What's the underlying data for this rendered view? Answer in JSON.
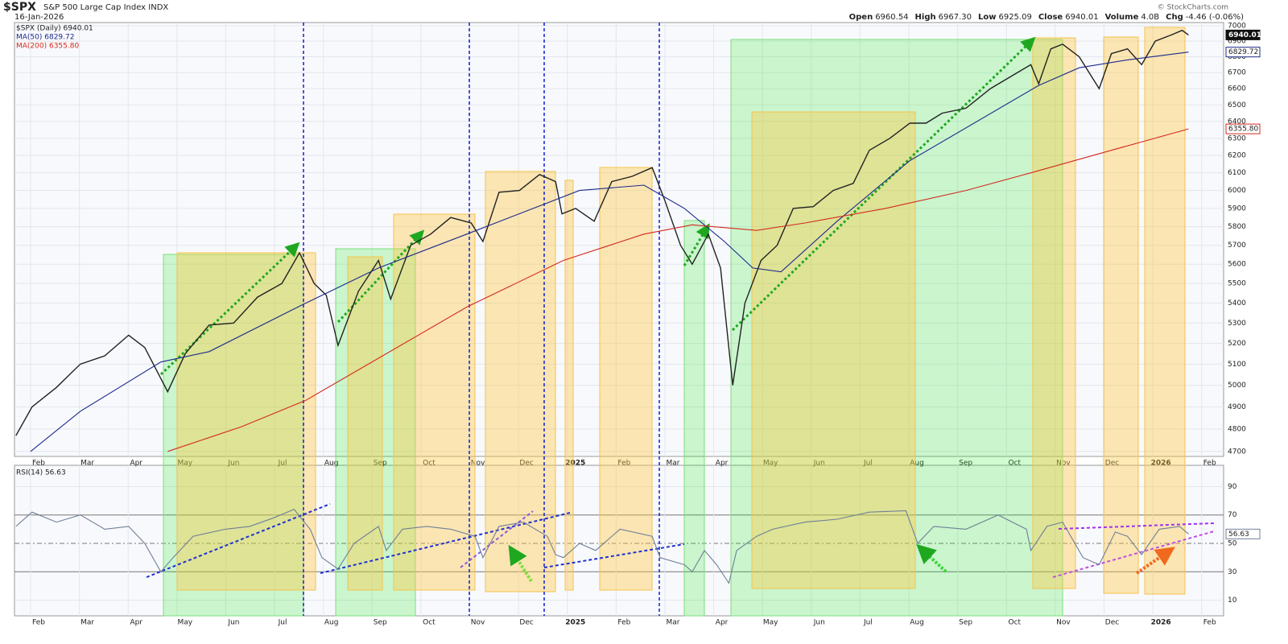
{
  "header": {
    "symbol": "$SPX",
    "name": "S&P 500 Large Cap Index",
    "exchange": "INDX",
    "date": "16-Jan-2026",
    "quote": [
      {
        "label": "Open",
        "value": "6960.54"
      },
      {
        "label": "High",
        "value": "6967.30"
      },
      {
        "label": "Low",
        "value": "6925.09"
      },
      {
        "label": "Close",
        "value": "6940.01"
      },
      {
        "label": "Volume",
        "value": "4.0B"
      },
      {
        "label": "Chg",
        "value": "-4.46 (-0.06%)"
      }
    ],
    "credit": "© StockCharts.com"
  },
  "chart_data": [
    {
      "type": "line",
      "log_scale": true,
      "grid": true,
      "xlim": [
        0.67,
        25.45
      ],
      "xticks": [
        {
          "value": 1,
          "label": "Feb"
        },
        {
          "value": 2,
          "label": "Mar"
        },
        {
          "value": 3,
          "label": "Apr"
        },
        {
          "value": 4,
          "label": "May"
        },
        {
          "value": 5,
          "label": "Jun"
        },
        {
          "value": 6,
          "label": "Jul"
        },
        {
          "value": 7,
          "label": "Aug"
        },
        {
          "value": 8,
          "label": "Sep"
        },
        {
          "value": 9,
          "label": "Oct"
        },
        {
          "value": 10,
          "label": "Nov"
        },
        {
          "value": 11,
          "label": "Dec"
        },
        {
          "value": 12,
          "label": "2025"
        },
        {
          "value": 13,
          "label": "Feb"
        },
        {
          "value": 14,
          "label": "Mar"
        },
        {
          "value": 15,
          "label": "Apr"
        },
        {
          "value": 16,
          "label": "May"
        },
        {
          "value": 17,
          "label": "Jun"
        },
        {
          "value": 18,
          "label": "Jul"
        },
        {
          "value": 19,
          "label": "Aug"
        },
        {
          "value": 20,
          "label": "Sep"
        },
        {
          "value": 21,
          "label": "Oct"
        },
        {
          "value": 22,
          "label": "Nov"
        },
        {
          "value": 23,
          "label": "Dec"
        },
        {
          "value": 24,
          "label": "2026"
        },
        {
          "value": 25,
          "label": "Feb"
        }
      ],
      "ylim": [
        4678,
        7021
      ],
      "yticks": [
        4700,
        4800,
        4900,
        5000,
        5100,
        5200,
        5300,
        5400,
        5500,
        5600,
        5700,
        5800,
        5900,
        6000,
        6100,
        6200,
        6300,
        6400,
        6500,
        6600,
        6700,
        6800,
        6900,
        7000
      ],
      "series": [
        {
          "name": "$SPX (Daily) 6940.01",
          "color": "#222222",
          "x": [
            0.7,
            1.03,
            1.53,
            2.02,
            2.52,
            3.01,
            3.34,
            3.81,
            4.17,
            4.66,
            5.16,
            5.65,
            6.15,
            6.51,
            6.81,
            7.06,
            7.3,
            7.72,
            8.13,
            8.38,
            8.79,
            9.2,
            9.61,
            10.03,
            10.27,
            10.6,
            11.02,
            11.43,
            11.76,
            11.89,
            12.17,
            12.55,
            12.91,
            13.33,
            13.74,
            13.99,
            14.32,
            14.56,
            14.89,
            15.14,
            15.39,
            15.64,
            15.97,
            16.3,
            16.63,
            17.04,
            17.45,
            17.86,
            18.19,
            18.61,
            19.02,
            19.35,
            19.68,
            20.17,
            20.67,
            21.17,
            21.5,
            21.66,
            21.91,
            22.15,
            22.49,
            22.9,
            23.15,
            23.48,
            23.77,
            24.05,
            24.38,
            24.6,
            24.73
          ],
          "values": [
            4770,
            4900,
            4990,
            5100,
            5140,
            5240,
            5180,
            4970,
            5150,
            5290,
            5300,
            5430,
            5500,
            5660,
            5500,
            5440,
            5190,
            5460,
            5620,
            5420,
            5700,
            5760,
            5850,
            5820,
            5720,
            5990,
            6000,
            6090,
            6050,
            5870,
            5900,
            5830,
            6050,
            6080,
            6130,
            5950,
            5700,
            5600,
            5760,
            5580,
            5000,
            5400,
            5620,
            5700,
            5900,
            5910,
            6000,
            6040,
            6230,
            6300,
            6390,
            6390,
            6450,
            6480,
            6600,
            6690,
            6750,
            6630,
            6850,
            6880,
            6800,
            6600,
            6820,
            6850,
            6750,
            6900,
            6940,
            6970,
            6940.01
          ],
          "value_labels": [
            null,
            null,
            null,
            null,
            null,
            null,
            null,
            null,
            null,
            null,
            null,
            null,
            null,
            null,
            null,
            null,
            null,
            null,
            null,
            null,
            null,
            null,
            null,
            null,
            null,
            null,
            null,
            null,
            null,
            null,
            null,
            null,
            null,
            null,
            null,
            null,
            null,
            null,
            null,
            null,
            null,
            null,
            null,
            null,
            null,
            null,
            null,
            null,
            null,
            null,
            null,
            null,
            null,
            null,
            null,
            null,
            null,
            null,
            null,
            null,
            null,
            null,
            null,
            null,
            null,
            null,
            null,
            null,
            "6940.01"
          ]
        },
        {
          "name": "MA(50) 6829.72",
          "color": "#1c2a8c",
          "x": [
            1.0,
            2.02,
            3.67,
            4.66,
            6.56,
            8.13,
            9.94,
            12.25,
            13.57,
            14.4,
            15.22,
            15.8,
            16.38,
            17.53,
            19.02,
            21.66,
            22.49,
            23.48,
            24.73
          ],
          "values": [
            4700,
            4880,
            5110,
            5160,
            5390,
            5580,
            5760,
            6000,
            6030,
            5900,
            5720,
            5580,
            5560,
            5830,
            6170,
            6620,
            6730,
            6780,
            6829.72
          ],
          "value_labels": [
            null,
            null,
            null,
            null,
            null,
            null,
            null,
            null,
            null,
            null,
            null,
            null,
            null,
            null,
            null,
            null,
            null,
            null,
            "6829.72"
          ]
        },
        {
          "name": "MA(200) 6355.80",
          "color": "#d42a1e",
          "x": [
            3.81,
            5.32,
            6.64,
            8.29,
            9.94,
            11.92,
            13.57,
            14.56,
            15.88,
            16.87,
            18.52,
            20.17,
            21.5,
            23.15,
            24.73
          ],
          "values": [
            4700,
            4810,
            4930,
            5150,
            5380,
            5620,
            5760,
            5810,
            5780,
            5820,
            5900,
            6000,
            6100,
            6230,
            6355.8
          ],
          "value_labels": [
            null,
            null,
            null,
            null,
            null,
            null,
            null,
            null,
            null,
            null,
            null,
            null,
            null,
            null,
            "6355.80"
          ]
        }
      ]
    },
    {
      "type": "line",
      "title": "RSI(14) 56.63",
      "grid": true,
      "xlim": [
        0.67,
        25.45
      ],
      "xticks": [
        {
          "value": 1,
          "label": "Feb"
        },
        {
          "value": 2,
          "label": "Mar"
        },
        {
          "value": 3,
          "label": "Apr"
        },
        {
          "value": 4,
          "label": "May"
        },
        {
          "value": 5,
          "label": "Jun"
        },
        {
          "value": 6,
          "label": "Jul"
        },
        {
          "value": 7,
          "label": "Aug"
        },
        {
          "value": 8,
          "label": "Sep"
        },
        {
          "value": 9,
          "label": "Oct"
        },
        {
          "value": 10,
          "label": "Nov"
        },
        {
          "value": 11,
          "label": "Dec"
        },
        {
          "value": 12,
          "label": "2025"
        },
        {
          "value": 13,
          "label": "Feb"
        },
        {
          "value": 14,
          "label": "Mar"
        },
        {
          "value": 15,
          "label": "Apr"
        },
        {
          "value": 16,
          "label": "May"
        },
        {
          "value": 17,
          "label": "Jun"
        },
        {
          "value": 18,
          "label": "Jul"
        },
        {
          "value": 19,
          "label": "Aug"
        },
        {
          "value": 20,
          "label": "Sep"
        },
        {
          "value": 21,
          "label": "Oct"
        },
        {
          "value": 22,
          "label": "Nov"
        },
        {
          "value": 23,
          "label": "Dec"
        },
        {
          "value": 24,
          "label": "2026"
        },
        {
          "value": 25,
          "label": "Feb"
        }
      ],
      "ylim": [
        -1,
        105
      ],
      "yticks": [
        10,
        30,
        50,
        70,
        90
      ],
      "series": [
        {
          "name": "RSI(14)",
          "color": "#6f7f96",
          "x": [
            0.7,
            1.03,
            1.53,
            2.02,
            2.52,
            3.01,
            3.34,
            3.67,
            3.92,
            4.33,
            4.99,
            5.49,
            5.98,
            6.4,
            6.73,
            6.97,
            7.3,
            7.63,
            8.13,
            8.29,
            8.62,
            9.12,
            9.61,
            10.11,
            10.27,
            10.6,
            11.1,
            11.59,
            11.76,
            11.92,
            12.25,
            12.58,
            13.08,
            13.74,
            13.9,
            14.4,
            14.56,
            14.81,
            15.06,
            15.31,
            15.47,
            15.88,
            16.21,
            16.87,
            17.53,
            18.19,
            18.94,
            19.18,
            19.51,
            20.17,
            20.83,
            21.41,
            21.5,
            21.83,
            22.15,
            22.57,
            22.9,
            23.23,
            23.48,
            23.77,
            24.13,
            24.55,
            24.73
          ],
          "values": [
            62,
            72,
            65,
            70,
            60,
            62,
            50,
            30,
            40,
            55,
            60,
            62,
            68,
            74,
            60,
            40,
            32,
            50,
            62,
            45,
            60,
            62,
            60,
            55,
            40,
            62,
            65,
            55,
            42,
            40,
            50,
            45,
            60,
            55,
            40,
            35,
            30,
            45,
            35,
            22,
            45,
            55,
            60,
            65,
            67,
            72,
            73,
            50,
            62,
            60,
            70,
            60,
            45,
            62,
            65,
            40,
            35,
            58,
            55,
            42,
            60,
            62,
            56.63
          ],
          "value_labels": [
            null,
            null,
            null,
            null,
            null,
            null,
            null,
            null,
            null,
            null,
            null,
            null,
            null,
            null,
            null,
            null,
            null,
            null,
            null,
            null,
            null,
            null,
            null,
            null,
            null,
            null,
            null,
            null,
            null,
            null,
            null,
            null,
            null,
            null,
            null,
            null,
            null,
            null,
            null,
            null,
            null,
            null,
            null,
            null,
            null,
            null,
            null,
            null,
            null,
            null,
            null,
            null,
            null,
            null,
            null,
            null,
            null,
            null,
            null,
            null,
            null,
            null,
            "56.63"
          ]
        }
      ]
    }
  ]
}
